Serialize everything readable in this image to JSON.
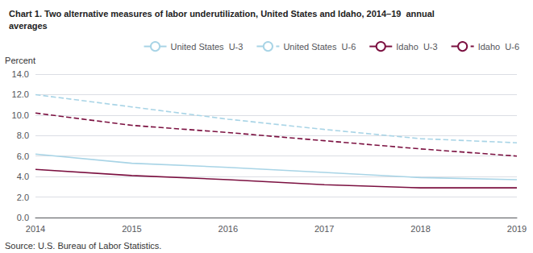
{
  "chart_data": {
    "type": "line",
    "title": "Chart 1. Two alternative measures of labor underutilization, United States and Idaho, 2014–19  annual\naverages",
    "ylabel": "Percent",
    "source": "Source: U.S. Bureau of Labor Statistics.",
    "x": [
      2014,
      2015,
      2016,
      2017,
      2018,
      2019
    ],
    "xlim": [
      2014,
      2019
    ],
    "xticks": [
      2014,
      2015,
      2016,
      2017,
      2018,
      2019
    ],
    "ylim": [
      0,
      14
    ],
    "yticks": [
      {
        "value": 0,
        "label": "0.0"
      },
      {
        "value": 2,
        "label": "2.0"
      },
      {
        "value": 4,
        "label": "4.0"
      },
      {
        "value": 6,
        "label": "6.0"
      },
      {
        "value": 8,
        "label": "8.0"
      },
      {
        "value": 10,
        "label": "10.0"
      },
      {
        "value": 12,
        "label": "12.0"
      },
      {
        "value": 14,
        "label": "14.0"
      }
    ],
    "grid": true,
    "legend": "upper right",
    "series": [
      {
        "name": "United States  U-3",
        "color": "#a8d4e6",
        "line_style": "solid",
        "values": [
          6.2,
          5.3,
          4.9,
          4.4,
          3.9,
          3.7
        ]
      },
      {
        "name": "United States  U-6",
        "color": "#a8d4e6",
        "line_style": "dashed",
        "values": [
          12.0,
          10.8,
          9.6,
          8.6,
          7.7,
          7.3
        ]
      },
      {
        "name": "Idaho  U-3",
        "color": "#7b1040",
        "line_style": "solid",
        "values": [
          4.7,
          4.1,
          3.7,
          3.2,
          2.9,
          2.9
        ]
      },
      {
        "name": "Idaho  U-6",
        "color": "#7b1040",
        "line_style": "dashed",
        "values": [
          10.2,
          9.0,
          8.3,
          7.5,
          6.7,
          6.0
        ]
      }
    ]
  }
}
